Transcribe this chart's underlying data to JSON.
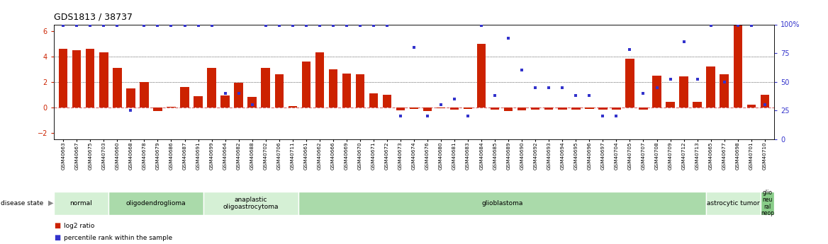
{
  "title": "GDS1813 / 38737",
  "samples": [
    "GSM40663",
    "GSM40667",
    "GSM40675",
    "GSM40703",
    "GSM40660",
    "GSM40668",
    "GSM40678",
    "GSM40679",
    "GSM40686",
    "GSM40687",
    "GSM40691",
    "GSM40699",
    "GSM40664",
    "GSM40682",
    "GSM40688",
    "GSM40702",
    "GSM40706",
    "GSM40711",
    "GSM40661",
    "GSM40662",
    "GSM40666",
    "GSM40669",
    "GSM40670",
    "GSM40671",
    "GSM40672",
    "GSM40673",
    "GSM40674",
    "GSM40676",
    "GSM40680",
    "GSM40681",
    "GSM40683",
    "GSM40684",
    "GSM40685",
    "GSM40689",
    "GSM40690",
    "GSM40692",
    "GSM40693",
    "GSM40694",
    "GSM40695",
    "GSM40696",
    "GSM40697",
    "GSM40704",
    "GSM40705",
    "GSM40707",
    "GSM40708",
    "GSM40709",
    "GSM40712",
    "GSM40713",
    "GSM40665",
    "GSM40677",
    "GSM40698",
    "GSM40701",
    "GSM40710"
  ],
  "log2_ratio": [
    4.6,
    4.5,
    4.6,
    4.3,
    3.1,
    1.5,
    2.0,
    -0.3,
    0.05,
    1.6,
    0.85,
    3.1,
    0.9,
    1.9,
    0.8,
    3.1,
    2.6,
    0.1,
    3.6,
    4.3,
    3.0,
    2.65,
    2.6,
    1.1,
    1.0,
    -0.25,
    -0.15,
    -0.3,
    -0.1,
    -0.2,
    -0.15,
    5.0,
    -0.2,
    -0.3,
    -0.25,
    -0.2,
    -0.2,
    -0.2,
    -0.2,
    -0.15,
    -0.2,
    -0.2,
    3.8,
    -0.2,
    2.5,
    0.4,
    2.4,
    0.4,
    3.2,
    2.6,
    7.5,
    0.2,
    1.0
  ],
  "percentile": [
    99,
    99,
    99,
    99,
    99,
    25,
    99,
    99,
    99,
    99,
    99,
    99,
    40,
    40,
    30,
    99,
    99,
    99,
    99,
    99,
    99,
    99,
    99,
    99,
    99,
    20,
    80,
    20,
    30,
    35,
    20,
    99,
    38,
    88,
    60,
    45,
    45,
    45,
    38,
    38,
    20,
    20,
    78,
    40,
    45,
    52,
    85,
    52,
    99,
    50,
    99,
    99,
    30
  ],
  "disease_groups": [
    {
      "label": "normal",
      "start": 0,
      "end": 4,
      "color": "#d5f0d5"
    },
    {
      "label": "oligodendroglioma",
      "start": 4,
      "end": 11,
      "color": "#aadaaa"
    },
    {
      "label": "anaplastic\noligoastrocytoma",
      "start": 11,
      "end": 18,
      "color": "#d5f0d5"
    },
    {
      "label": "glioblastoma",
      "start": 18,
      "end": 48,
      "color": "#aadaaa"
    },
    {
      "label": "astrocytic tumor",
      "start": 48,
      "end": 52,
      "color": "#d5f0d5"
    },
    {
      "label": "glio\nneu\nral\nneop",
      "start": 52,
      "end": 53,
      "color": "#88cc88"
    }
  ],
  "bar_color": "#cc2200",
  "dot_color": "#3333cc",
  "ylim_left": [
    -2.5,
    6.5
  ],
  "ylim_right": [
    0,
    100
  ],
  "yticks_left": [
    -2,
    0,
    2,
    4,
    6
  ],
  "yticks_right": [
    0,
    25,
    50,
    75,
    100
  ],
  "hline_0_color": "#cc4444",
  "hline_style": "dotted",
  "bg_color": "#ffffff"
}
